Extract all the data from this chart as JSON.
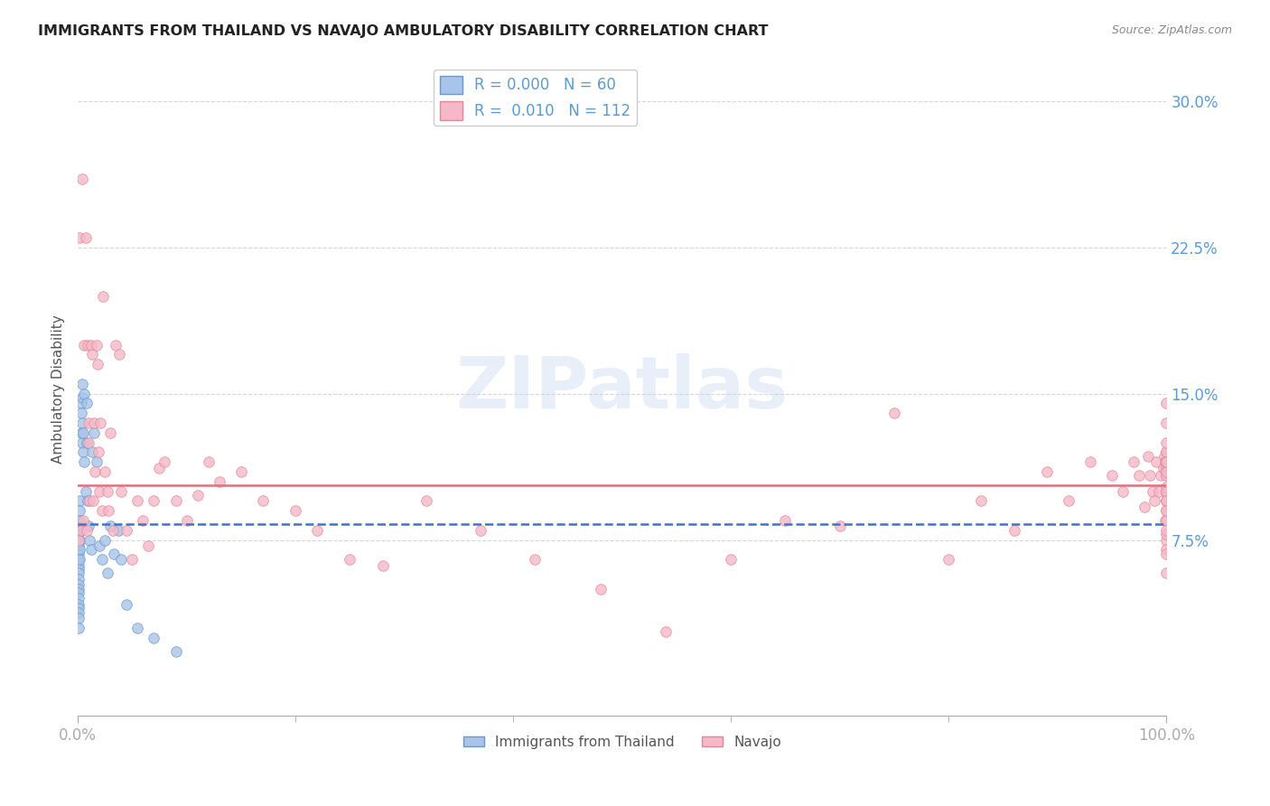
{
  "title": "IMMIGRANTS FROM THAILAND VS NAVAJO AMBULATORY DISABILITY CORRELATION CHART",
  "source": "Source: ZipAtlas.com",
  "ylabel": "Ambulatory Disability",
  "xlim": [
    0.0,
    1.0
  ],
  "ylim": [
    -0.015,
    0.32
  ],
  "yticks": [
    0.075,
    0.15,
    0.225,
    0.3
  ],
  "ytick_labels": [
    "7.5%",
    "15.0%",
    "22.5%",
    "30.0%"
  ],
  "xtick_labels": [
    "0.0%",
    "100.0%"
  ],
  "xtick_pos": [
    0.0,
    1.0
  ],
  "legend_R1": "0.000",
  "legend_N1": "60",
  "legend_R2": "0.010",
  "legend_N2": "112",
  "color_blue": "#a8c4e8",
  "color_pink": "#f5b8c8",
  "color_blue_edge": "#6699cc",
  "color_pink_edge": "#e08898",
  "line_blue_color": "#4472c4",
  "line_pink_color": "#e07080",
  "background_color": "#ffffff",
  "grid_color": "#cccccc",
  "title_color": "#222222",
  "tick_label_color": "#5b9bd5",
  "watermark": "ZIPatlas",
  "blue_line_y": 0.083,
  "pink_line_y": 0.103,
  "blue_points_x": [
    0.001,
    0.001,
    0.001,
    0.001,
    0.001,
    0.001,
    0.001,
    0.001,
    0.001,
    0.001,
    0.001,
    0.001,
    0.001,
    0.001,
    0.001,
    0.001,
    0.001,
    0.001,
    0.001,
    0.001,
    0.002,
    0.002,
    0.002,
    0.002,
    0.002,
    0.002,
    0.002,
    0.003,
    0.003,
    0.003,
    0.004,
    0.004,
    0.004,
    0.004,
    0.005,
    0.005,
    0.006,
    0.006,
    0.007,
    0.008,
    0.008,
    0.009,
    0.01,
    0.011,
    0.012,
    0.013,
    0.015,
    0.017,
    0.02,
    0.022,
    0.025,
    0.027,
    0.03,
    0.033,
    0.037,
    0.04,
    0.045,
    0.055,
    0.07,
    0.09
  ],
  "blue_points_y": [
    0.082,
    0.078,
    0.075,
    0.072,
    0.07,
    0.068,
    0.065,
    0.062,
    0.06,
    0.058,
    0.055,
    0.052,
    0.05,
    0.048,
    0.045,
    0.042,
    0.04,
    0.038,
    0.035,
    0.03,
    0.095,
    0.09,
    0.085,
    0.08,
    0.075,
    0.07,
    0.065,
    0.145,
    0.14,
    0.13,
    0.155,
    0.148,
    0.135,
    0.125,
    0.13,
    0.12,
    0.15,
    0.115,
    0.1,
    0.145,
    0.125,
    0.095,
    0.082,
    0.075,
    0.07,
    0.12,
    0.13,
    0.115,
    0.072,
    0.065,
    0.075,
    0.058,
    0.082,
    0.068,
    0.08,
    0.065,
    0.042,
    0.03,
    0.025,
    0.018
  ],
  "pink_points_x": [
    0.001,
    0.002,
    0.003,
    0.004,
    0.005,
    0.006,
    0.007,
    0.008,
    0.009,
    0.01,
    0.01,
    0.011,
    0.012,
    0.013,
    0.014,
    0.015,
    0.016,
    0.017,
    0.018,
    0.019,
    0.02,
    0.021,
    0.022,
    0.023,
    0.025,
    0.027,
    0.028,
    0.03,
    0.032,
    0.035,
    0.038,
    0.04,
    0.045,
    0.05,
    0.055,
    0.06,
    0.065,
    0.07,
    0.075,
    0.08,
    0.09,
    0.1,
    0.11,
    0.12,
    0.13,
    0.15,
    0.17,
    0.2,
    0.22,
    0.25,
    0.28,
    0.32,
    0.37,
    0.42,
    0.48,
    0.54,
    0.6,
    0.65,
    0.7,
    0.75,
    0.8,
    0.83,
    0.86,
    0.89,
    0.91,
    0.93,
    0.95,
    0.96,
    0.97,
    0.975,
    0.98,
    0.983,
    0.985,
    0.987,
    0.989,
    0.991,
    0.993,
    0.995,
    0.997,
    0.998,
    0.999,
    0.999,
    1.0,
    1.0,
    1.0,
    1.0,
    1.0,
    1.0,
    1.0,
    1.0,
    1.0,
    1.0,
    1.0,
    1.0,
    1.0,
    1.0,
    1.0,
    1.0,
    1.0,
    1.0,
    1.0,
    1.0,
    1.0,
    1.0,
    1.0,
    1.0,
    1.0,
    1.0,
    1.0,
    1.0,
    1.0,
    1.0
  ],
  "pink_points_y": [
    0.075,
    0.23,
    0.08,
    0.26,
    0.085,
    0.175,
    0.23,
    0.08,
    0.175,
    0.125,
    0.135,
    0.095,
    0.175,
    0.17,
    0.095,
    0.135,
    0.11,
    0.175,
    0.165,
    0.12,
    0.1,
    0.135,
    0.09,
    0.2,
    0.11,
    0.1,
    0.09,
    0.13,
    0.08,
    0.175,
    0.17,
    0.1,
    0.08,
    0.065,
    0.095,
    0.085,
    0.072,
    0.095,
    0.112,
    0.115,
    0.095,
    0.085,
    0.098,
    0.115,
    0.105,
    0.11,
    0.095,
    0.09,
    0.08,
    0.065,
    0.062,
    0.095,
    0.08,
    0.065,
    0.05,
    0.028,
    0.065,
    0.085,
    0.082,
    0.14,
    0.065,
    0.095,
    0.08,
    0.11,
    0.095,
    0.115,
    0.108,
    0.1,
    0.115,
    0.108,
    0.092,
    0.118,
    0.108,
    0.1,
    0.095,
    0.115,
    0.1,
    0.108,
    0.112,
    0.118,
    0.085,
    0.115,
    0.12,
    0.1,
    0.112,
    0.095,
    0.115,
    0.1,
    0.108,
    0.102,
    0.145,
    0.135,
    0.115,
    0.11,
    0.075,
    0.085,
    0.115,
    0.108,
    0.12,
    0.125,
    0.058,
    0.07,
    0.068,
    0.095,
    0.09,
    0.11,
    0.078,
    0.1,
    0.115,
    0.095,
    0.09,
    0.08
  ]
}
